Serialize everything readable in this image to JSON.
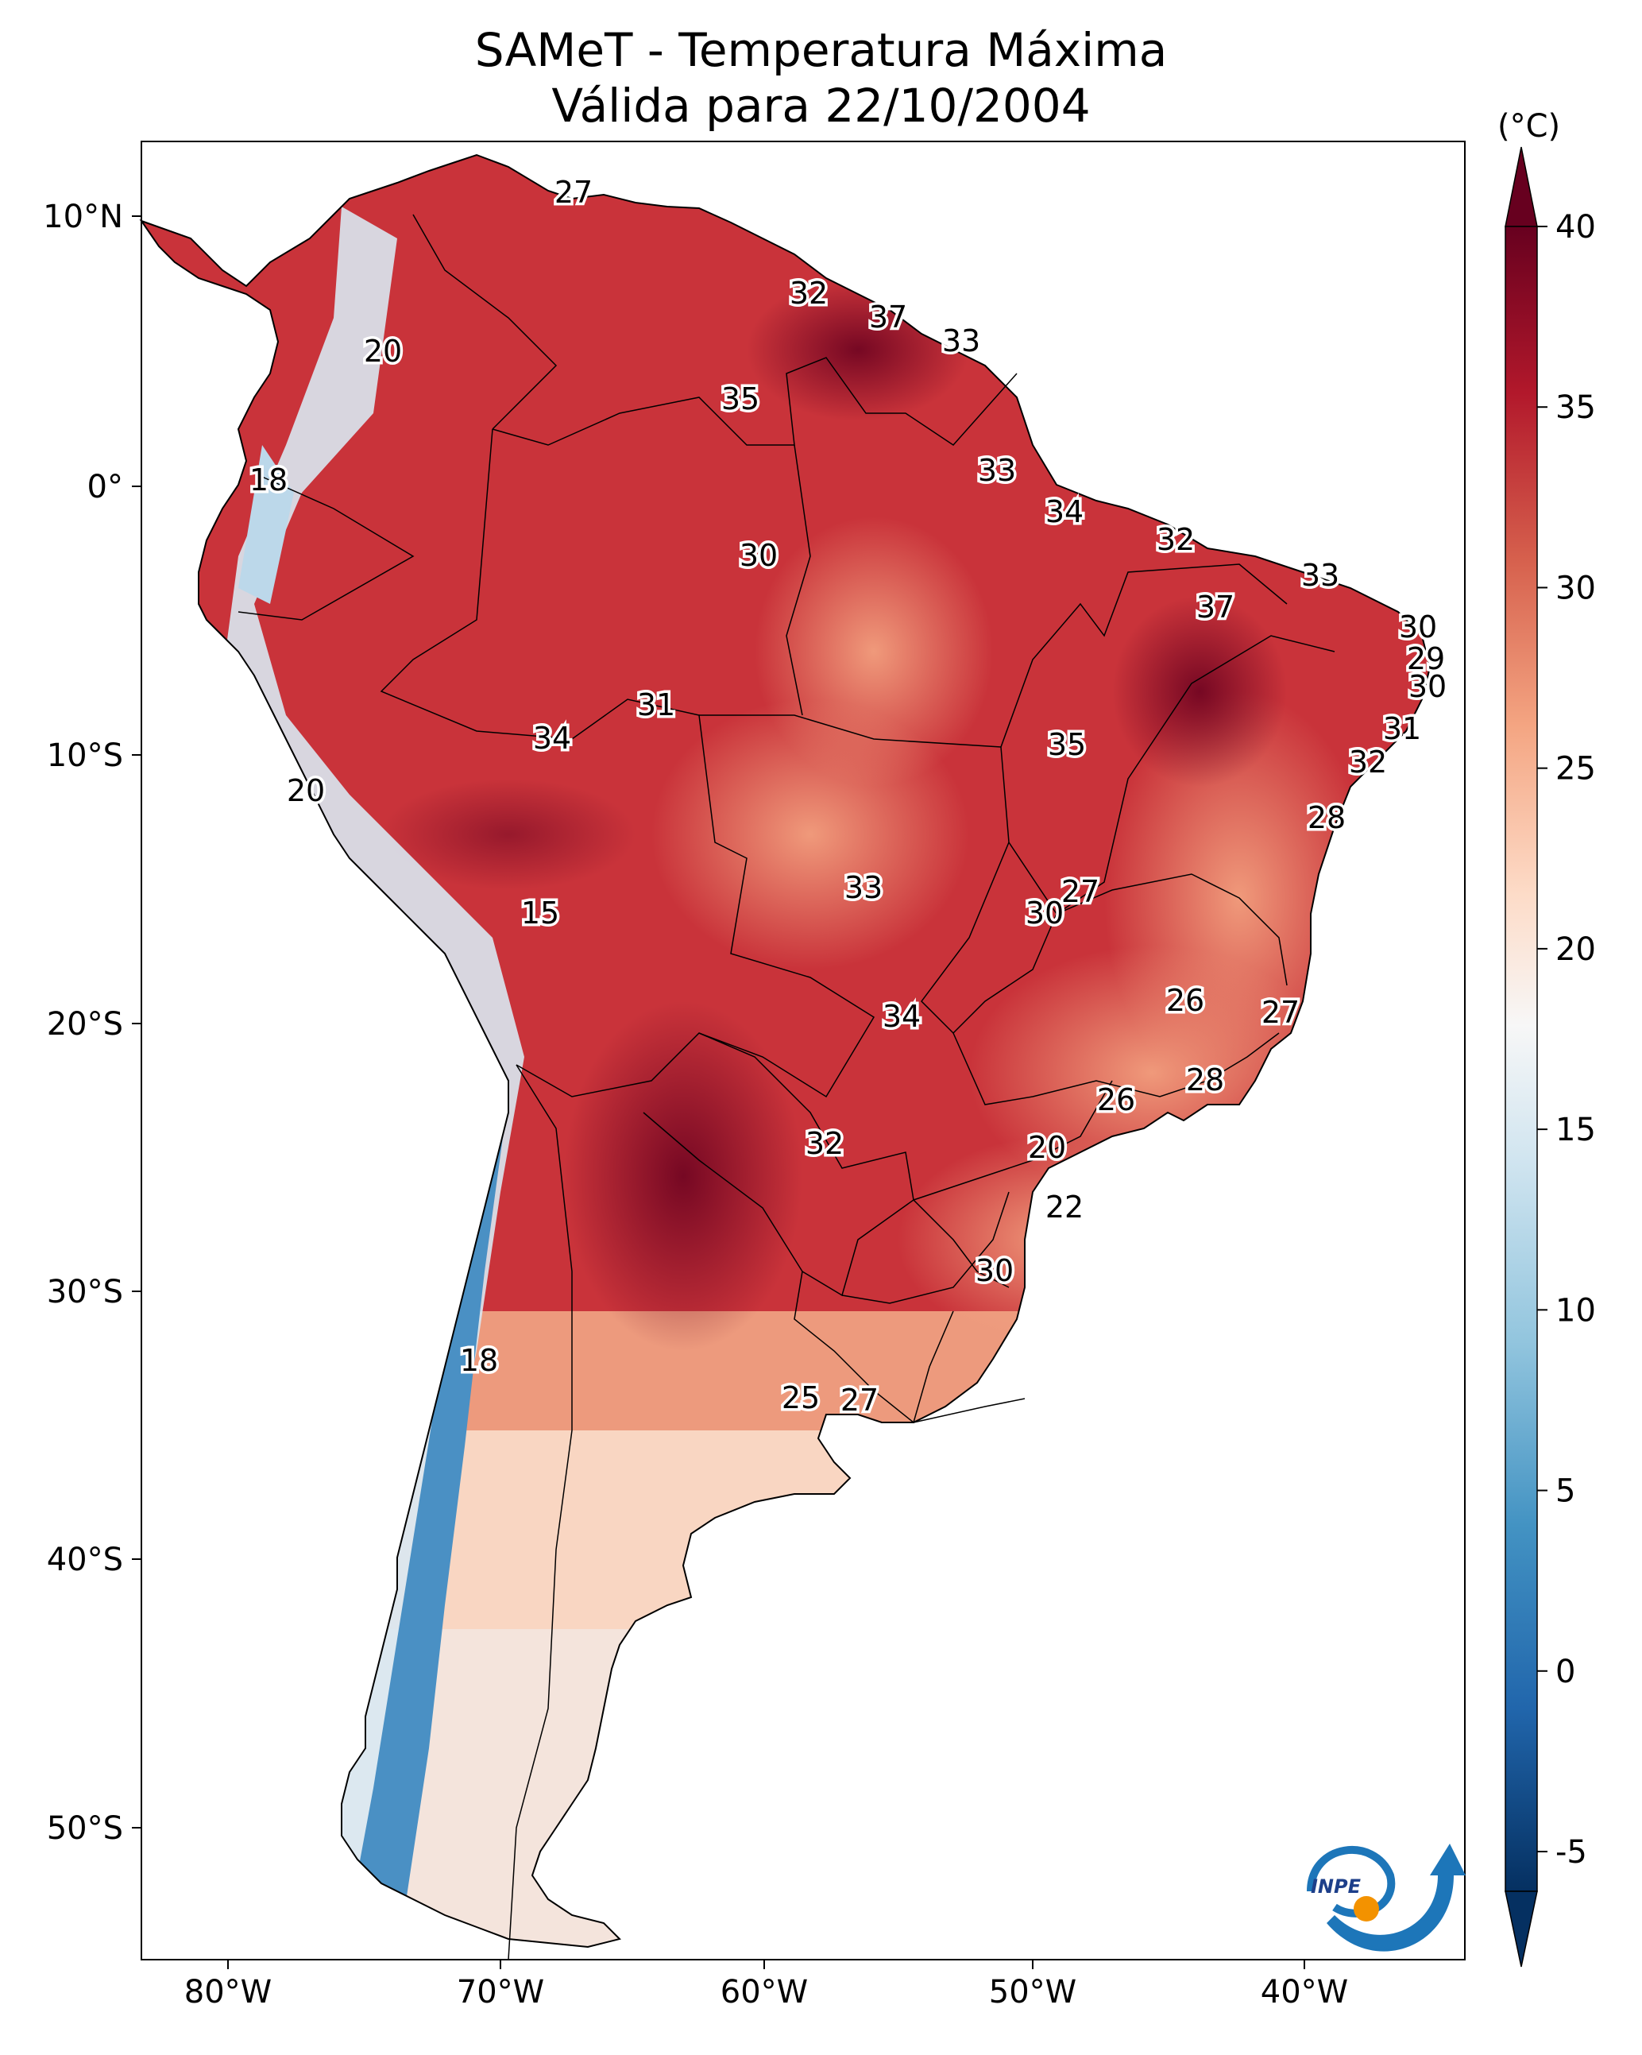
{
  "title": {
    "line1": "SAMeT - Temperatura Máxima",
    "line2": "Válida para 22/10/2004"
  },
  "colorbar": {
    "unit_label": "(°C)",
    "ticks": [
      "-5",
      "0",
      "5",
      "10",
      "15",
      "20",
      "25",
      "30",
      "35",
      "40"
    ],
    "range": [
      -5,
      40
    ],
    "colors": [
      "#053061",
      "#2166ac",
      "#4393c3",
      "#92c5de",
      "#d1e5f0",
      "#f7f7f7",
      "#fddbc7",
      "#f4a582",
      "#d6604d",
      "#b2182b",
      "#67001f"
    ]
  },
  "axes": {
    "lat_labels": [
      "10°N",
      "0°",
      "10°S",
      "20°S",
      "30°S",
      "40°S",
      "50°S"
    ],
    "lon_labels": [
      "80°W",
      "70°W",
      "60°W",
      "50°W",
      "40°W"
    ]
  },
  "contour_labels": [
    "27",
    "20",
    "32",
    "37",
    "33",
    "35",
    "18",
    "33",
    "34",
    "30",
    "32",
    "33",
    "37",
    "30",
    "29",
    "30",
    "31",
    "31",
    "34",
    "35",
    "32",
    "20",
    "28",
    "15",
    "27",
    "33",
    "30",
    "26",
    "27",
    "34",
    "28",
    "26",
    "32",
    "20",
    "22",
    "30",
    "18",
    "25",
    "27"
  ],
  "logo": {
    "text": "INPE"
  }
}
